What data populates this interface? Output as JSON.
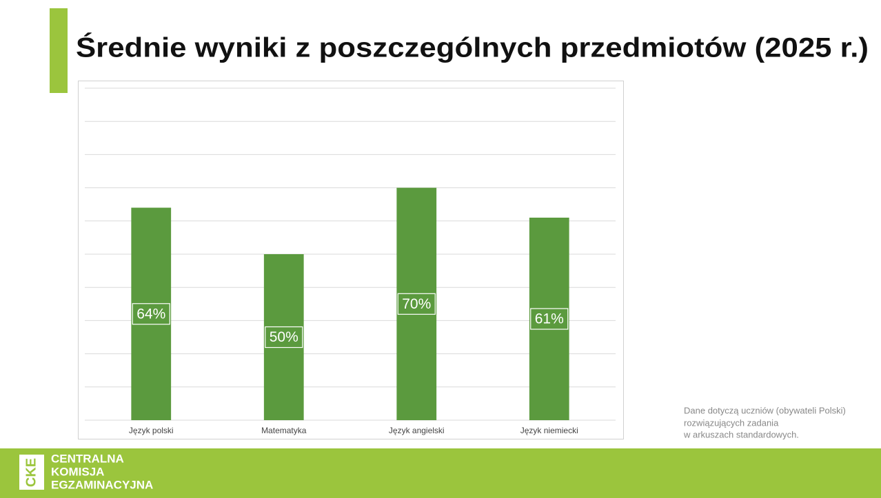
{
  "chart_data": {
    "type": "bar",
    "title": "Średnie wyniki z poszczególnych przedmiotów (2025 r.)",
    "categories": [
      "Język polski",
      "Matematyka",
      "Język angielski",
      "Język niemiecki"
    ],
    "values": [
      64,
      50,
      70,
      61
    ],
    "value_labels": [
      "64%",
      "50%",
      "70%",
      "61%"
    ],
    "color": "#5b9a3e",
    "ylim": [
      0,
      100
    ],
    "yticks": [
      0,
      10,
      20,
      30,
      40,
      50,
      60,
      70,
      80,
      90,
      100
    ],
    "grid": true
  },
  "note": [
    "Dane dotyczą uczniów (obywateli Polski)",
    "rozwiązujących zadania",
    "w arkuszach standardowych."
  ],
  "footer": {
    "logo_mark": "CKE",
    "name": [
      "CENTRALNA",
      "KOMISJA",
      "EGZAMINACYJNA"
    ]
  }
}
